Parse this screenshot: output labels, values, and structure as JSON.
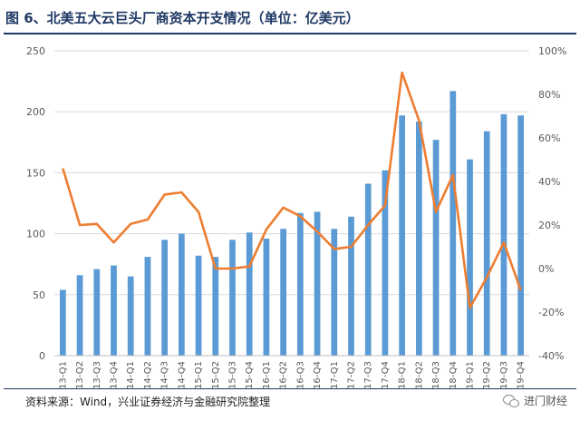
{
  "header": {
    "title": "图 6、北美五大云巨头厂商资本开支情况（单位：亿美元）"
  },
  "footer": {
    "source": "资料来源：Wind，兴业证券经济与金融研究院整理",
    "watermark": "进门财经",
    "watermark_icon": "wechat-icon"
  },
  "colors": {
    "bar": "#5b9bd5",
    "line": "#ed7d31",
    "title": "#1f3864",
    "grid": "#d9d9d9",
    "axis_text": "#595959"
  },
  "chart_data": {
    "type": "bar",
    "title": "",
    "xlabel": "",
    "ylabel": "",
    "grid": true,
    "legend": "none",
    "categories": [
      "13-Q1",
      "13-Q2",
      "13-Q3",
      "13-Q4",
      "14-Q1",
      "14-Q2",
      "14-Q3",
      "14-Q4",
      "15-Q1",
      "15-Q2",
      "15-Q3",
      "15-Q4",
      "16-Q1",
      "16-Q2",
      "16-Q3",
      "16-Q4",
      "17-Q1",
      "17-Q2",
      "17-Q3",
      "17-Q4",
      "18-Q1",
      "18-Q2",
      "18-Q3",
      "18-Q4",
      "19-Q1",
      "19-Q2",
      "19-Q3",
      "19-Q4"
    ],
    "ylim": [
      0,
      250
    ],
    "yticks": [
      "0",
      "50",
      "100",
      "150",
      "200",
      "250"
    ],
    "y2lim": [
      -0.4,
      1.0
    ],
    "y2ticks": [
      "-40%",
      "-20%",
      "0%",
      "20%",
      "40%",
      "60%",
      "80%",
      "100%"
    ],
    "series": [
      {
        "type": "bar",
        "axis": "left",
        "values": [
          54,
          66,
          71,
          74,
          65,
          81,
          95,
          100,
          82,
          81,
          95,
          101,
          96,
          104,
          117,
          118,
          104,
          114,
          141,
          152,
          197,
          192,
          177,
          217,
          161,
          184,
          198,
          197
        ]
      },
      {
        "type": "line",
        "axis": "right",
        "values": [
          0.46,
          0.2,
          0.205,
          0.12,
          0.205,
          0.225,
          0.34,
          0.35,
          0.26,
          0.0,
          0.0,
          0.01,
          0.18,
          0.28,
          0.24,
          0.17,
          0.09,
          0.1,
          0.2,
          0.29,
          0.9,
          0.68,
          0.26,
          0.43,
          -0.18,
          -0.04,
          0.12,
          -0.1
        ]
      }
    ]
  }
}
